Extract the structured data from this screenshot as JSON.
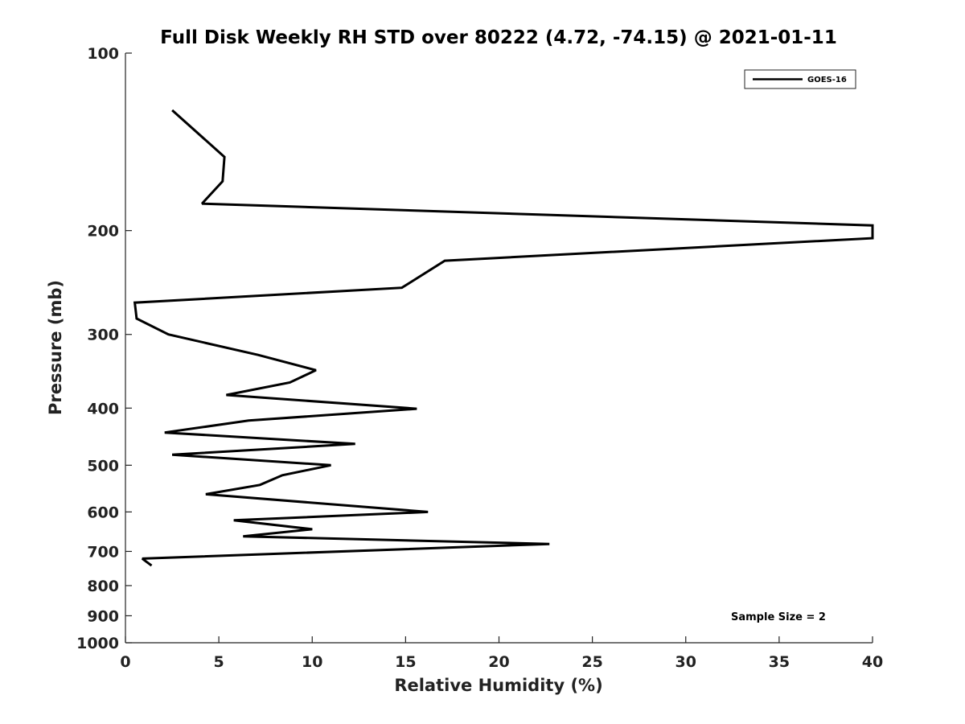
{
  "chart_data": {
    "type": "line",
    "title": "Full Disk Weekly RH STD over 80222 (4.72, -74.15) @ 2021-01-11",
    "xlabel": "Relative Humidity (%)",
    "ylabel": "Pressure (mb)",
    "xlim": [
      0,
      40
    ],
    "ylim": [
      1000,
      100
    ],
    "yscale": "log",
    "xticks": [
      0,
      5,
      10,
      15,
      20,
      25,
      30,
      35,
      40
    ],
    "yticks": [
      100,
      200,
      300,
      400,
      500,
      600,
      700,
      800,
      900,
      1000
    ],
    "grid": false,
    "legend": {
      "position": "top-right",
      "entries": [
        "GOES-16"
      ]
    },
    "annotation": "Sample Size = 2",
    "series": [
      {
        "name": "GOES-16",
        "color": "#000000",
        "points": [
          {
            "x": 2.5,
            "y": 125
          },
          {
            "x": 5.3,
            "y": 150
          },
          {
            "x": 5.2,
            "y": 165
          },
          {
            "x": 4.1,
            "y": 180
          },
          {
            "x": 40.0,
            "y": 196
          },
          {
            "x": 40.0,
            "y": 206
          },
          {
            "x": 17.1,
            "y": 225
          },
          {
            "x": 14.8,
            "y": 250
          },
          {
            "x": 0.5,
            "y": 265
          },
          {
            "x": 0.6,
            "y": 282
          },
          {
            "x": 2.3,
            "y": 300
          },
          {
            "x": 7.1,
            "y": 325
          },
          {
            "x": 10.2,
            "y": 345
          },
          {
            "x": 8.8,
            "y": 362
          },
          {
            "x": 5.4,
            "y": 380
          },
          {
            "x": 15.6,
            "y": 401
          },
          {
            "x": 6.6,
            "y": 420
          },
          {
            "x": 2.1,
            "y": 440
          },
          {
            "x": 12.3,
            "y": 460
          },
          {
            "x": 2.5,
            "y": 480
          },
          {
            "x": 11.0,
            "y": 500
          },
          {
            "x": 8.4,
            "y": 520
          },
          {
            "x": 7.2,
            "y": 540
          },
          {
            "x": 4.3,
            "y": 560
          },
          {
            "x": 16.2,
            "y": 600
          },
          {
            "x": 5.8,
            "y": 620
          },
          {
            "x": 10.0,
            "y": 642
          },
          {
            "x": 6.3,
            "y": 660
          },
          {
            "x": 22.7,
            "y": 680
          },
          {
            "x": 0.9,
            "y": 720
          },
          {
            "x": 1.4,
            "y": 740
          }
        ]
      }
    ]
  }
}
